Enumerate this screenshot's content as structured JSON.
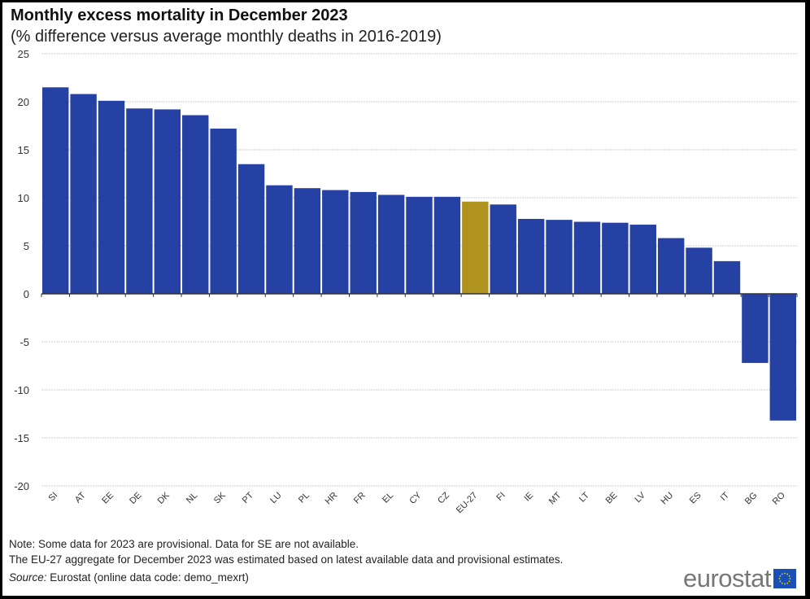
{
  "header": {
    "title": "Monthly excess mortality in December 2023",
    "subtitle": "(% difference versus average monthly  deaths in 2016-2019)"
  },
  "colors": {
    "bar": "#2441a3",
    "highlight": "#b0921f",
    "grid": "#cfcfcf",
    "axis": "#333333"
  },
  "chart_data": {
    "type": "bar",
    "title": "Monthly excess mortality in December 2023",
    "subtitle": "(% difference versus average monthly deaths in 2016-2019)",
    "xlabel": "",
    "ylabel": "",
    "ylim": [
      -20,
      25
    ],
    "yticks": [
      25,
      20,
      15,
      10,
      5,
      0,
      -5,
      -10,
      -15,
      -20
    ],
    "grid": true,
    "legend": "none",
    "categories": [
      "SI",
      "AT",
      "EE",
      "DE",
      "DK",
      "NL",
      "SK",
      "PT",
      "LU",
      "PL",
      "HR",
      "FR",
      "EL",
      "CY",
      "CZ",
      "EU-27",
      "FI",
      "IE",
      "MT",
      "LT",
      "BE",
      "LV",
      "HU",
      "ES",
      "IT",
      "BG",
      "RO"
    ],
    "values": [
      21.5,
      20.8,
      20.1,
      19.3,
      19.2,
      18.6,
      17.2,
      13.5,
      11.3,
      11.0,
      10.8,
      10.6,
      10.3,
      10.1,
      10.1,
      9.6,
      9.3,
      7.8,
      7.7,
      7.5,
      7.4,
      7.2,
      5.8,
      4.8,
      3.4,
      -7.2,
      -13.2
    ],
    "highlight_category": "EU-27"
  },
  "footer": {
    "note1": "Note: Some data for 2023 are provisional.  Data for SE are not available.",
    "note2": "The EU-27 aggregate for December 2023 was estimated based on latest available data and provisional estimates.",
    "source_label": "Source:",
    "source_text": " Eurostat (online data code: demo_mexrt)",
    "logo_text": "eurostat",
    "logo_icon": "eu-flag-icon"
  }
}
